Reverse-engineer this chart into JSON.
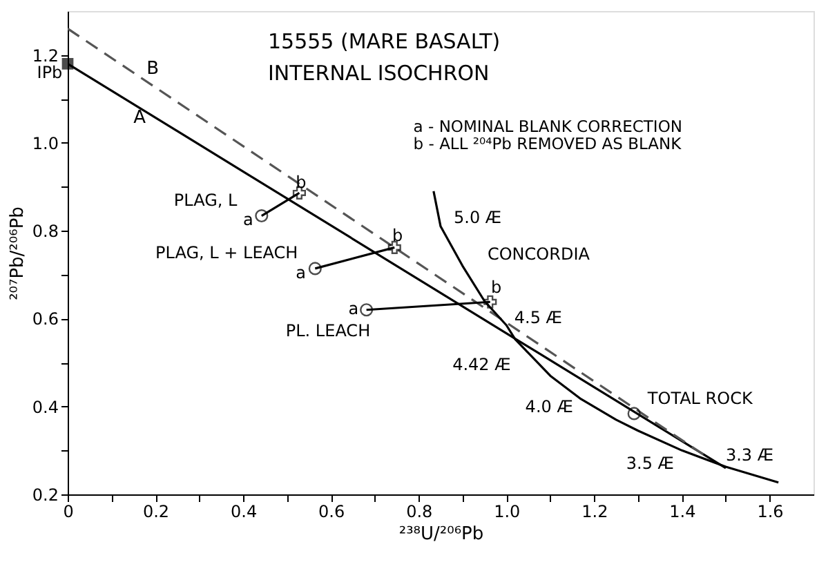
{
  "chart_data": {
    "type": "line",
    "title": "15555 (MARE BASALT)",
    "subtitle": "INTERNAL ISOCHRON",
    "xlabel": "²³⁸U/²⁰⁶Pb",
    "ylabel": "²⁰⁷Pb/²⁰⁶Pb",
    "xlim": [
      0,
      1.7
    ],
    "ylim": [
      0.2,
      1.3
    ],
    "xticks": [
      0,
      {
        "value": 0.1,
        "label": null
      },
      0.2,
      {
        "value": 0.3,
        "label": null
      },
      0.4,
      {
        "value": 0.5,
        "label": null
      },
      0.6,
      {
        "value": 0.7,
        "label": null
      },
      0.8,
      {
        "value": 0.9,
        "label": null
      },
      {
        "value": 1.0,
        "label": "1.0"
      },
      {
        "value": 1.1,
        "label": null
      },
      1.2,
      {
        "value": 1.3,
        "label": null
      },
      1.4,
      {
        "value": 1.5,
        "label": null
      },
      1.6
    ],
    "yticks": [
      0.2,
      {
        "value": 0.3,
        "label": null
      },
      0.4,
      {
        "value": 0.5,
        "label": null
      },
      0.6,
      {
        "value": 0.7,
        "label": null
      },
      0.8,
      {
        "value": 0.9,
        "label": null
      },
      {
        "value": 1.0,
        "label": "1.0"
      },
      {
        "value": 1.1,
        "label": null
      },
      1.2
    ],
    "grid": false,
    "series": [
      {
        "color": "#000000",
        "line_style": "solid",
        "marker": "none",
        "x": [
          0,
          1.5
        ],
        "values": [
          1.18,
          0.26
        ]
      },
      {
        "color": "#555555",
        "line_style": "dashed",
        "marker": "none",
        "x": [
          0,
          1.45
        ],
        "values": [
          1.26,
          0.29
        ]
      },
      {
        "color": "#000000",
        "line_style": "solid",
        "marker": "none",
        "x": [
          0.834,
          0.85,
          0.9,
          0.95,
          1.0,
          1.02,
          1.1,
          1.17,
          1.25,
          1.3,
          1.4,
          1.5,
          1.62
        ],
        "values": [
          0.89,
          0.81,
          0.72,
          0.64,
          0.585,
          0.553,
          0.47,
          0.417,
          0.37,
          0.345,
          0.3,
          0.263,
          0.227
        ]
      },
      {
        "color": "#000000",
        "line_style": "solid",
        "marker": "none",
        "x": [
          0.442,
          0.528
        ],
        "values": [
          0.834,
          0.886
        ]
      },
      {
        "color": "#000000",
        "line_style": "solid",
        "marker": "none",
        "x": [
          0.564,
          0.745
        ],
        "values": [
          0.714,
          0.762
        ]
      },
      {
        "color": "#000000",
        "line_style": "solid",
        "marker": "none",
        "x": [
          0.681,
          0.963
        ],
        "values": [
          0.62,
          0.638
        ]
      },
      {
        "type": "scatter",
        "color": "#000000",
        "marker": "circle",
        "x": [
          0.442,
          0.564,
          0.681
        ],
        "values": [
          0.834,
          0.714,
          0.62
        ]
      },
      {
        "type": "scatter",
        "color": "#000000",
        "marker": "cross",
        "x": [
          0.528,
          0.745,
          0.963
        ],
        "values": [
          0.886,
          0.762,
          0.638
        ]
      },
      {
        "type": "scatter",
        "color": "#000000",
        "marker": "square",
        "x": [
          0
        ],
        "values": [
          1.18
        ]
      },
      {
        "type": "scatter",
        "color": "#000000",
        "marker": "circle",
        "x": [
          1.291
        ],
        "values": [
          0.384
        ]
      }
    ],
    "annotations": [
      "a - NOMINAL BLANK CORRECTION",
      "b - ALL ²⁰⁴Pb REMOVED AS BLANK",
      "IPb",
      "A",
      "B",
      "PLAG, L",
      "PLAG, L + LEACH",
      "PL. LEACH",
      "a",
      "b",
      "a",
      "b",
      "a",
      "b",
      "5.0 Æ",
      "CONCORDIA",
      "4.5 Æ",
      "4.42 Æ",
      "4.0 Æ",
      "3.5 Æ",
      "3.3 Æ",
      "TOTAL ROCK"
    ]
  }
}
